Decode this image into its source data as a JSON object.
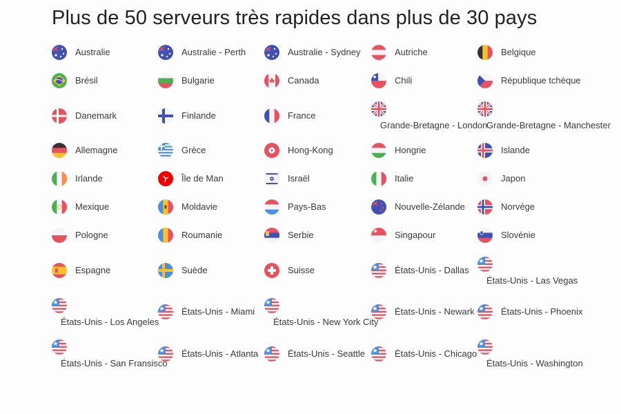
{
  "header": {
    "title": "Plus de 50 serveurs très rapides dans plus de 30 pays"
  },
  "servers": [
    {
      "label": "Australie",
      "flag": "australia-flag-icon"
    },
    {
      "label": "Australie - Perth",
      "flag": "australia-flag-icon"
    },
    {
      "label": "Australie - Sydney",
      "flag": "australia-flag-icon"
    },
    {
      "label": "Autriche",
      "flag": "austria-flag-icon"
    },
    {
      "label": "Belgique",
      "flag": "belgium-flag-icon"
    },
    {
      "label": "Brésil",
      "flag": "brazil-flag-icon"
    },
    {
      "label": "Bulgarie",
      "flag": "bulgaria-flag-icon"
    },
    {
      "label": "Canada",
      "flag": "canada-flag-icon"
    },
    {
      "label": "Chili",
      "flag": "chile-flag-icon"
    },
    {
      "label": "République tchèque",
      "flag": "czech-flag-icon"
    },
    {
      "label": "Danemark",
      "flag": "denmark-flag-icon"
    },
    {
      "label": "Finlande",
      "flag": "finland-flag-icon"
    },
    {
      "label": "France",
      "flag": "france-flag-icon"
    },
    {
      "label": "Grande-Bretagne - London",
      "flag": "uk-flag-icon"
    },
    {
      "label": "Grande-Bretagne - Manchester",
      "flag": "uk-flag-icon"
    },
    {
      "label": "Allemagne",
      "flag": "germany-flag-icon"
    },
    {
      "label": "Grèce",
      "flag": "greece-flag-icon"
    },
    {
      "label": "Hong-Kong",
      "flag": "hong-kong-flag-icon"
    },
    {
      "label": "Hongrie",
      "flag": "hungary-flag-icon"
    },
    {
      "label": "Islande",
      "flag": "iceland-flag-icon"
    },
    {
      "label": "Irlande",
      "flag": "ireland-flag-icon"
    },
    {
      "label": "Île de Man",
      "flag": "isle-of-man-flag-icon"
    },
    {
      "label": "Israël",
      "flag": "israel-flag-icon"
    },
    {
      "label": "Italie",
      "flag": "italy-flag-icon"
    },
    {
      "label": "Japon",
      "flag": "japan-flag-icon"
    },
    {
      "label": "Mexique",
      "flag": "mexico-flag-icon"
    },
    {
      "label": "Moldavie",
      "flag": "moldova-flag-icon"
    },
    {
      "label": "Pays-Bas",
      "flag": "netherlands-flag-icon"
    },
    {
      "label": "Nouvelle-Zélande",
      "flag": "new-zealand-flag-icon"
    },
    {
      "label": "Norvège",
      "flag": "norway-flag-icon"
    },
    {
      "label": "Pologne",
      "flag": "poland-flag-icon"
    },
    {
      "label": "Roumanie",
      "flag": "romania-flag-icon"
    },
    {
      "label": "Serbie",
      "flag": "serbia-flag-icon"
    },
    {
      "label": "Singapour",
      "flag": "singapore-flag-icon"
    },
    {
      "label": "Slovénie",
      "flag": "slovenia-flag-icon"
    },
    {
      "label": "Espagne",
      "flag": "spain-flag-icon"
    },
    {
      "label": "Suède",
      "flag": "sweden-flag-icon"
    },
    {
      "label": "Suisse",
      "flag": "switzerland-flag-icon"
    },
    {
      "label": "États-Unis - Dallas",
      "flag": "usa-flag-icon"
    },
    {
      "label": "États-Unis - Las Vegas",
      "flag": "usa-flag-icon"
    },
    {
      "label": "États-Unis - Los Angeles",
      "flag": "usa-flag-icon"
    },
    {
      "label": "États-Unis - Miami",
      "flag": "usa-flag-icon"
    },
    {
      "label": "États-Unis - New York City",
      "flag": "usa-flag-icon"
    },
    {
      "label": "États-Unis - Newark",
      "flag": "usa-flag-icon"
    },
    {
      "label": "États-Unis - Phoenix",
      "flag": "usa-flag-icon"
    },
    {
      "label": "États-Unis - San Fransisco",
      "flag": "usa-flag-icon"
    },
    {
      "label": "États-Unis - Atlanta",
      "flag": "usa-flag-icon"
    },
    {
      "label": "États-Unis - Seattle",
      "flag": "usa-flag-icon"
    },
    {
      "label": "États-Unis - Chicago",
      "flag": "usa-flag-icon"
    },
    {
      "label": "États-Unis - Washington",
      "flag": "usa-flag-icon"
    }
  ],
  "colors": {
    "red": "#e8515e",
    "blue": "#3f51b5",
    "white": "#f4f4f8",
    "green": "#4caf50",
    "yellow": "#fbc02d",
    "black": "#333333",
    "text": "#3a3a3a"
  }
}
